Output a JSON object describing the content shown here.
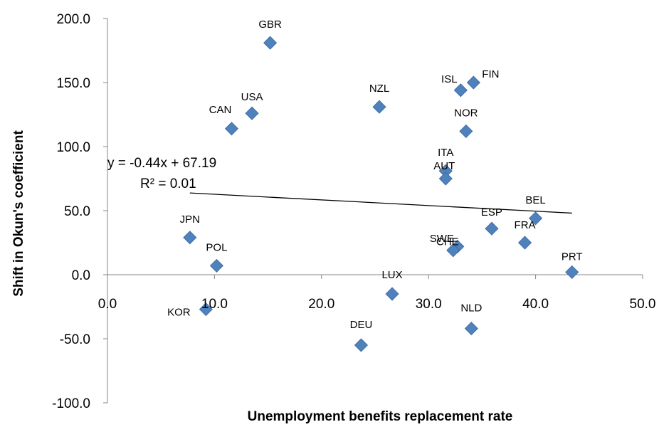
{
  "chart_data": {
    "type": "scatter",
    "title": "",
    "xlabel": "Unemployment benefits replacement rate",
    "ylabel": "Shift in Okun's coefficient",
    "xlim": [
      0,
      50
    ],
    "ylim": [
      -100,
      200
    ],
    "xticks": [
      0,
      10,
      20,
      30,
      40,
      50
    ],
    "xtick_labels": [
      "0.0",
      "10.0",
      "20.0",
      "30.0",
      "40.0",
      "50.0"
    ],
    "yticks": [
      200,
      150,
      100,
      50,
      0,
      -50,
      -100
    ],
    "ytick_labels": [
      "200.0",
      "150.0",
      "100.0",
      "50.0",
      "0.0",
      "-50.0",
      "-100.0"
    ],
    "grid": false,
    "legend": "none",
    "marker": "diamond",
    "marker_color": "#4F81BD",
    "points": [
      {
        "label": "GBR",
        "x": 15.2,
        "y": 181
      },
      {
        "label": "FIN",
        "x": 34.2,
        "y": 150
      },
      {
        "label": "ISL",
        "x": 33.0,
        "y": 144
      },
      {
        "label": "NZL",
        "x": 25.4,
        "y": 131
      },
      {
        "label": "USA",
        "x": 13.5,
        "y": 126
      },
      {
        "label": "CAN",
        "x": 11.6,
        "y": 114
      },
      {
        "label": "NOR",
        "x": 33.5,
        "y": 112
      },
      {
        "label": "ITA",
        "x": 31.6,
        "y": 81
      },
      {
        "label": "AUT",
        "x": 31.6,
        "y": 75
      },
      {
        "label": "BEL",
        "x": 40.0,
        "y": 44
      },
      {
        "label": "ESP",
        "x": 35.9,
        "y": 36
      },
      {
        "label": "JPN",
        "x": 7.7,
        "y": 29
      },
      {
        "label": "FRA",
        "x": 39.0,
        "y": 25
      },
      {
        "label": "CHE",
        "x": 32.7,
        "y": 22
      },
      {
        "label": "SWE",
        "x": 32.3,
        "y": 19
      },
      {
        "label": "POL",
        "x": 10.2,
        "y": 7
      },
      {
        "label": "PRT",
        "x": 43.4,
        "y": 2
      },
      {
        "label": "LUX",
        "x": 26.6,
        "y": -15
      },
      {
        "label": "KOR",
        "x": 9.2,
        "y": -27
      },
      {
        "label": "NLD",
        "x": 34.0,
        "y": -42
      },
      {
        "label": "DEU",
        "x": 23.7,
        "y": -55
      }
    ],
    "trendline": {
      "type": "linear",
      "slope": -0.44,
      "intercept": 67.19,
      "x_range": [
        7.7,
        43.4
      ],
      "equation": "y = -0.44x + 67.19",
      "r_squared": "R² = 0.01",
      "color": "#000000"
    }
  }
}
